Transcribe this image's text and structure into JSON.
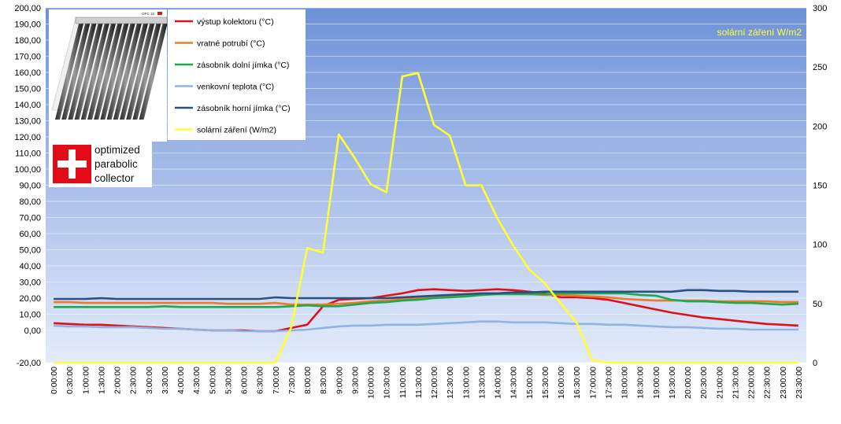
{
  "chart_data": {
    "type": "line",
    "annotation": "solární záření W/m2",
    "logo": {
      "lines": [
        "optimized",
        "parabolic",
        "collector"
      ],
      "badge_text": "OPC 15"
    },
    "left_axis": {
      "ylim": [
        -20,
        200
      ],
      "ticks": [
        "-20,00",
        "0,00",
        "10,00",
        "20,00",
        "30,00",
        "40,00",
        "50,00",
        "60,00",
        "70,00",
        "80,00",
        "90,00",
        "100,00",
        "110,00",
        "120,00",
        "130,00",
        "140,00",
        "150,00",
        "160,00",
        "170,00",
        "180,00",
        "190,00",
        "200,00"
      ]
    },
    "right_axis": {
      "ylim": [
        0,
        300
      ],
      "ticks": [
        "0",
        "50",
        "100",
        "150",
        "200",
        "250",
        "300"
      ]
    },
    "grid": true,
    "background": "gradient #6e92d8 to #e4ecfb",
    "x": [
      "0:00:00",
      "0:30:00",
      "1:00:00",
      "1:30:00",
      "2:00:00",
      "2:30:00",
      "3:00:00",
      "3:30:00",
      "4:00:00",
      "4:30:00",
      "5:00:00",
      "5:30:00",
      "6:00:00",
      "6:30:00",
      "7:00:00",
      "7:30:00",
      "8:00:00",
      "8:30:00",
      "9:00:00",
      "9:30:00",
      "10:00:00",
      "10:30:00",
      "11:00:00",
      "11:30:00",
      "12:00:00",
      "12:30:00",
      "13:00:00",
      "13:30:00",
      "14:00:00",
      "14:30:00",
      "15:00:00",
      "15:30:00",
      "16:00:00",
      "16:30:00",
      "17:00:00",
      "17:30:00",
      "18:00:00",
      "18:30:00",
      "19:00:00",
      "19:30:00",
      "20:00:00",
      "20:30:00",
      "21:00:00",
      "21:30:00",
      "22:00:00",
      "22:30:00",
      "23:00:00",
      "23:30:00"
    ],
    "series": [
      {
        "name": "výstup kolektoru (°C)",
        "axis": "left",
        "color": "#e0101a",
        "values": [
          4.5,
          4,
          3.5,
          3.5,
          3,
          2.5,
          2,
          1.5,
          1,
          0.5,
          0,
          0,
          0,
          -0.5,
          -0.5,
          1.5,
          3.5,
          15,
          19,
          19.5,
          20,
          21.5,
          23,
          25,
          25.5,
          25,
          24.5,
          25,
          25.5,
          25,
          24,
          23,
          20.5,
          20.5,
          20,
          19,
          17,
          15,
          13,
          11,
          9.5,
          8,
          7,
          6,
          5,
          4,
          3.5,
          3
        ]
      },
      {
        "name": "vratné potrubí (°C)",
        "axis": "left",
        "color": "#ee7a28",
        "values": [
          17.5,
          17.5,
          17,
          17,
          17,
          17,
          17,
          17,
          17,
          17,
          17,
          16.5,
          16.5,
          16.5,
          17,
          16,
          16,
          16,
          16.5,
          17,
          18,
          18.5,
          19.5,
          20,
          21,
          21.5,
          22,
          22.5,
          23,
          23,
          22.5,
          22,
          22,
          21.5,
          21,
          20.5,
          19.5,
          19,
          18.5,
          18.5,
          18.5,
          18.5,
          18,
          18,
          18,
          18,
          17.5,
          17.5
        ]
      },
      {
        "name": "zásobník dolní jímka (°C)",
        "axis": "left",
        "color": "#1caa50",
        "values": [
          14.5,
          14.5,
          14.5,
          14.5,
          14.5,
          14.5,
          14.5,
          15,
          14.5,
          14.5,
          14.5,
          14.5,
          14.5,
          14.5,
          14.5,
          15,
          15.5,
          15,
          15,
          16,
          17,
          17.5,
          18.5,
          19,
          20,
          20.5,
          21,
          22,
          22.5,
          22.5,
          22.5,
          22.5,
          23,
          23,
          23,
          23,
          23,
          22,
          21.5,
          19,
          18,
          18,
          17.5,
          17,
          17,
          16.5,
          16,
          16.5
        ]
      },
      {
        "name": "venkovní teplota (°C)",
        "axis": "left",
        "color": "#8fb4e3",
        "values": [
          3,
          2.5,
          2.5,
          2,
          2,
          2,
          1.5,
          1,
          1,
          0.5,
          0,
          0,
          -0.5,
          -0.5,
          -0.5,
          0,
          0.5,
          1.5,
          2.5,
          3,
          3,
          3.5,
          3.5,
          3.5,
          4,
          4.5,
          5,
          5.5,
          5.5,
          5,
          5,
          5,
          4.5,
          4,
          4,
          3.5,
          3.5,
          3,
          2.5,
          2,
          2,
          1.5,
          1,
          1,
          0.5,
          0.5,
          0.5,
          0.5
        ]
      },
      {
        "name": "zásobník horní jímka (°C)",
        "axis": "left",
        "color": "#2c4f7e",
        "values": [
          19.5,
          19.5,
          19.5,
          20,
          19.5,
          19.5,
          19.5,
          19.5,
          19.5,
          19.5,
          19.5,
          19.5,
          19.5,
          19.5,
          20.5,
          20,
          20,
          20,
          20,
          20,
          20,
          20,
          20.5,
          21,
          21.5,
          22,
          22.5,
          23,
          23,
          23.5,
          23.5,
          24,
          24,
          24,
          24,
          24,
          24,
          24,
          24,
          24,
          25,
          25,
          24.5,
          24.5,
          24,
          24,
          24,
          24
        ]
      },
      {
        "name": "solární záření (W/m2)",
        "axis": "right",
        "color": "#ffff33",
        "values": [
          0,
          0,
          0,
          0,
          0,
          0,
          0,
          0,
          0,
          0,
          0,
          0,
          0,
          0,
          0,
          30,
          97,
          93,
          193,
          173,
          151,
          144,
          242,
          245,
          201,
          192,
          150,
          150,
          122,
          99,
          79,
          67,
          50,
          34,
          2,
          0,
          0,
          0,
          0,
          0,
          0,
          0,
          0,
          0,
          0,
          0,
          0,
          0
        ]
      }
    ]
  }
}
